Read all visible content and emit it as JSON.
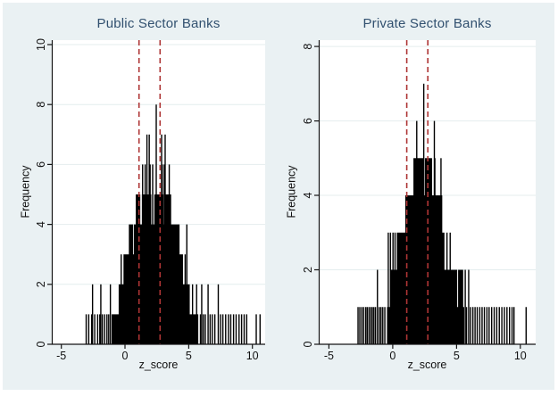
{
  "figure": {
    "background": "#eaf1f3",
    "plot_background": "#ffffff",
    "grid_color": "#e4edee",
    "axis_color": "#141414",
    "bar_color": "#000000",
    "ref_line_color": "#ae3535",
    "title_color": "#31506f",
    "tick_label_color": "#111111"
  },
  "chart_data": [
    {
      "type": "bar",
      "title": "Public Sector Banks",
      "xlabel": "z_score",
      "ylabel": "Frequency",
      "xticks": [
        -5,
        0,
        5,
        10
      ],
      "yticks": [
        0,
        2,
        4,
        6,
        8,
        10
      ],
      "xlim": [
        -5.75,
        11.0
      ],
      "ylim": [
        0,
        10.15
      ],
      "grid": true,
      "legend": "none",
      "ref_lines_x": [
        1.1,
        2.75
      ],
      "bars": [
        [
          -3.05,
          -3.05,
          1
        ],
        [
          -2.85,
          -2.85,
          1
        ],
        [
          -2.62,
          -2.62,
          1
        ],
        [
          -2.38,
          -2.38,
          1
        ],
        [
          -2.15,
          -2.15,
          1
        ],
        [
          -1.98,
          -1.98,
          1
        ],
        [
          -1.78,
          -1.78,
          1
        ],
        [
          -1.6,
          -1.6,
          1
        ],
        [
          -1.42,
          -1.42,
          1
        ],
        [
          -1.28,
          -1.28,
          1
        ],
        [
          -2.55,
          -2.55,
          2
        ],
        [
          -1.9,
          -1.9,
          2
        ],
        [
          -1.15,
          -1.15,
          2
        ],
        [
          -1.05,
          5.75,
          1
        ],
        [
          -0.5,
          5.08,
          2
        ],
        [
          -0.3,
          -0.3,
          3
        ],
        [
          -0.12,
          4.55,
          3
        ],
        [
          4.72,
          4.72,
          3
        ],
        [
          0.3,
          0.64,
          4
        ],
        [
          0.7,
          1.62,
          4
        ],
        [
          1.68,
          2.62,
          4
        ],
        [
          2.68,
          3.42,
          4
        ],
        [
          3.48,
          4.28,
          4
        ],
        [
          4.85,
          4.85,
          4
        ],
        [
          0.84,
          1.2,
          5
        ],
        [
          1.32,
          2.06,
          5
        ],
        [
          2.3,
          3.02,
          5
        ],
        [
          3.12,
          3.62,
          5
        ],
        [
          1.38,
          1.38,
          6
        ],
        [
          1.58,
          1.58,
          6
        ],
        [
          1.97,
          1.97,
          6
        ],
        [
          2.17,
          2.17,
          6
        ],
        [
          2.92,
          2.92,
          6
        ],
        [
          3.08,
          3.08,
          6
        ],
        [
          3.47,
          3.47,
          6
        ],
        [
          1.72,
          1.72,
          7
        ],
        [
          1.9,
          1.9,
          7
        ],
        [
          2.87,
          2.87,
          7
        ],
        [
          3.15,
          3.15,
          7
        ],
        [
          2.45,
          2.45,
          8
        ],
        [
          5.3,
          5.3,
          2
        ],
        [
          5.62,
          5.62,
          2
        ],
        [
          6.02,
          6.02,
          2
        ],
        [
          6.52,
          6.52,
          2
        ],
        [
          7.32,
          7.32,
          2
        ],
        [
          5.92,
          5.92,
          1
        ],
        [
          6.15,
          6.15,
          1
        ],
        [
          6.3,
          6.3,
          1
        ],
        [
          6.68,
          6.68,
          1
        ],
        [
          6.85,
          6.85,
          1
        ],
        [
          7.05,
          7.05,
          1
        ],
        [
          7.5,
          7.5,
          1
        ],
        [
          7.68,
          7.68,
          1
        ],
        [
          7.9,
          7.9,
          1
        ],
        [
          8.12,
          8.12,
          1
        ],
        [
          8.3,
          8.3,
          1
        ],
        [
          8.52,
          8.52,
          1
        ],
        [
          8.72,
          8.72,
          1
        ],
        [
          8.95,
          8.95,
          1
        ],
        [
          9.15,
          9.15,
          1
        ],
        [
          9.35,
          9.35,
          1
        ],
        [
          9.55,
          9.55,
          1
        ],
        [
          10.3,
          10.3,
          1
        ],
        [
          10.6,
          10.6,
          1
        ]
      ]
    },
    {
      "type": "bar",
      "title": "Private Sector Banks",
      "xlabel": "z_score",
      "ylabel": "Frequency",
      "xticks": [
        -5,
        0,
        5,
        10
      ],
      "yticks": [
        0,
        2,
        4,
        6,
        8
      ],
      "xlim": [
        -5.8,
        11.2
      ],
      "ylim": [
        0,
        8.17
      ],
      "grid": true,
      "legend": "none",
      "ref_lines_x": [
        1.1,
        2.75
      ],
      "bars": [
        [
          -2.72,
          -2.72,
          1
        ],
        [
          -2.58,
          -2.58,
          1
        ],
        [
          -2.42,
          -2.42,
          1
        ],
        [
          -2.28,
          -2.28,
          1
        ],
        [
          -2.12,
          -2.12,
          1
        ],
        [
          -2.0,
          -2.0,
          1
        ],
        [
          -1.86,
          -1.86,
          1
        ],
        [
          -1.72,
          -1.72,
          1
        ],
        [
          -1.6,
          -1.6,
          1
        ],
        [
          -1.48,
          -1.48,
          1
        ],
        [
          -1.35,
          -1.35,
          1
        ],
        [
          -1.05,
          -1.05,
          1
        ],
        [
          -0.92,
          -0.92,
          1
        ],
        [
          -0.78,
          -0.78,
          1
        ],
        [
          -0.62,
          -0.62,
          1
        ],
        [
          -1.2,
          -1.2,
          2
        ],
        [
          -0.45,
          5.6,
          1
        ],
        [
          -0.15,
          5.05,
          2
        ],
        [
          5.12,
          5.52,
          2
        ],
        [
          5.68,
          5.68,
          2
        ],
        [
          5.95,
          5.95,
          2
        ],
        [
          -0.35,
          -0.35,
          3
        ],
        [
          -0.18,
          -0.18,
          3
        ],
        [
          0.02,
          0.02,
          3
        ],
        [
          0.18,
          0.18,
          3
        ],
        [
          0.32,
          2.28,
          3
        ],
        [
          2.36,
          4.05,
          3
        ],
        [
          4.25,
          4.25,
          3
        ],
        [
          4.5,
          4.5,
          3
        ],
        [
          0.98,
          1.9,
          4
        ],
        [
          1.98,
          2.9,
          4
        ],
        [
          2.98,
          3.88,
          4
        ],
        [
          1.62,
          2.4,
          5
        ],
        [
          2.52,
          3.08,
          5
        ],
        [
          3.3,
          3.3,
          5
        ],
        [
          3.78,
          3.78,
          5
        ],
        [
          1.88,
          1.88,
          6
        ],
        [
          3.26,
          3.26,
          6
        ],
        [
          2.43,
          2.43,
          7
        ],
        [
          5.78,
          5.78,
          1
        ],
        [
          6.1,
          6.1,
          1
        ],
        [
          6.28,
          6.28,
          1
        ],
        [
          6.45,
          6.45,
          1
        ],
        [
          6.62,
          6.62,
          1
        ],
        [
          6.82,
          6.82,
          1
        ],
        [
          7.0,
          7.0,
          1
        ],
        [
          7.18,
          7.18,
          1
        ],
        [
          7.38,
          7.38,
          1
        ],
        [
          7.55,
          7.55,
          1
        ],
        [
          7.75,
          7.75,
          1
        ],
        [
          7.95,
          7.95,
          1
        ],
        [
          8.15,
          8.15,
          1
        ],
        [
          8.35,
          8.35,
          1
        ],
        [
          8.55,
          8.55,
          1
        ],
        [
          8.75,
          8.75,
          1
        ],
        [
          8.95,
          8.95,
          1
        ],
        [
          9.15,
          9.15,
          1
        ],
        [
          9.35,
          9.35,
          1
        ],
        [
          9.5,
          9.5,
          1
        ],
        [
          10.45,
          10.45,
          1
        ]
      ]
    }
  ]
}
